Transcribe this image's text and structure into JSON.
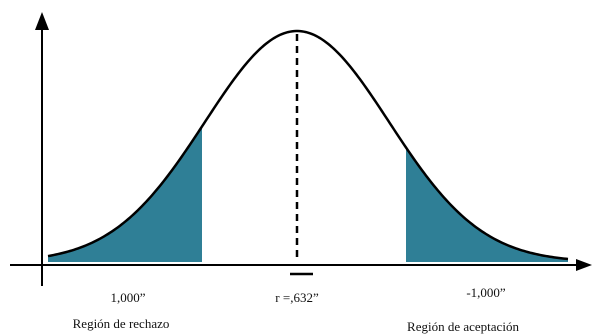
{
  "diagram": {
    "type": "normal-distribution-curve",
    "colors": {
      "curve": "#000000",
      "axis": "#000000",
      "shaded_region": "#2f7f96",
      "background": "#ffffff"
    },
    "labels": {
      "left_value": "1,000”",
      "center_value": "r =,632”",
      "right_value": "-1,000”",
      "left_region": "Región de rechazo",
      "right_region": "Región de aceptación"
    }
  }
}
